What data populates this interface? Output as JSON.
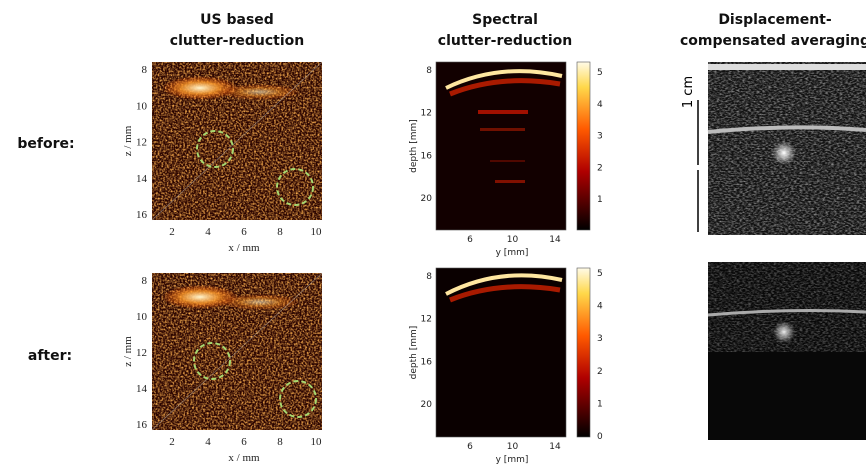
{
  "columns": [
    {
      "title_lines": [
        "US based",
        "clutter-reduction"
      ]
    },
    {
      "title_lines": [
        "Spectral",
        "clutter-reduction"
      ]
    },
    {
      "title_lines": [
        "Displacement-",
        "compensated averaging"
      ]
    }
  ],
  "rows": [
    "before:",
    "after:"
  ],
  "us_panels": {
    "xlabel": "x / mm",
    "ylabel": "z / mm",
    "xticks": [
      "2",
      "4",
      "6",
      "8",
      "10"
    ],
    "yticks": [
      "8",
      "10",
      "12",
      "14",
      "16"
    ]
  },
  "spectral_panels": {
    "xlabel": "y [mm]",
    "ylabel": "depth [mm]",
    "xticks": [
      "6",
      "10",
      "14"
    ],
    "yticks": [
      "8",
      "12",
      "16",
      "20"
    ],
    "colorbar_ticks_before": [
      "5",
      "4",
      "3",
      "2",
      "1"
    ],
    "colorbar_ticks_after": [
      "5",
      "4",
      "3",
      "2",
      "1",
      "0"
    ]
  },
  "scale_bar": "1 cm"
}
